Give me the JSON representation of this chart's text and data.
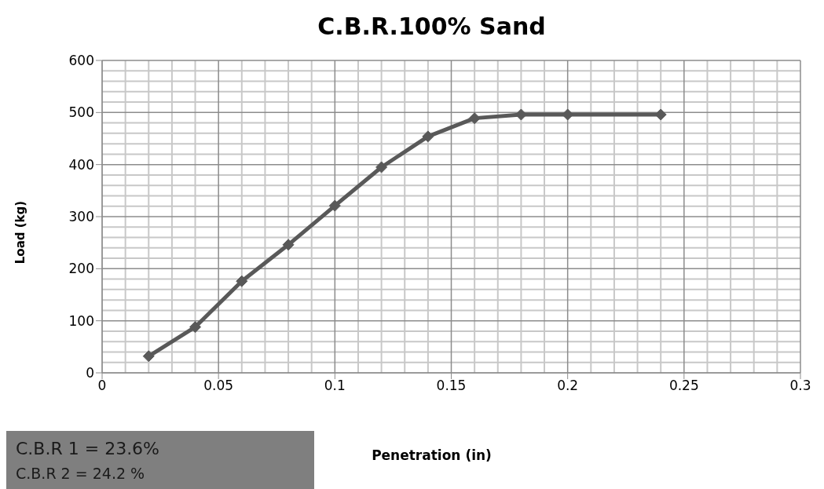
{
  "chart_data": {
    "type": "line",
    "title": "C.B.R.100% Sand",
    "xlabel": "Penetration (in)",
    "ylabel": "Load (kg)",
    "x": [
      0.02,
      0.04,
      0.06,
      0.08,
      0.1,
      0.12,
      0.14,
      0.16,
      0.18,
      0.2,
      0.24
    ],
    "series": [
      {
        "color": "#595959",
        "values": [
          32,
          88,
          176,
          246,
          321,
          395,
          454,
          489,
          496,
          496,
          496
        ]
      }
    ],
    "xlim": [
      0,
      0.3
    ],
    "xticks": [
      0,
      0.05,
      0.1,
      0.15,
      0.2,
      0.25,
      0.3
    ],
    "ylim": [
      0,
      600
    ],
    "yticks": [
      0,
      100,
      200,
      300,
      400,
      500,
      600
    ],
    "grid": true,
    "marker": "diamond",
    "line_style": "solid",
    "annotations": [
      "C.B.R 1  =  23.6%",
      "C.B.R 2  = 24.2 %"
    ]
  }
}
